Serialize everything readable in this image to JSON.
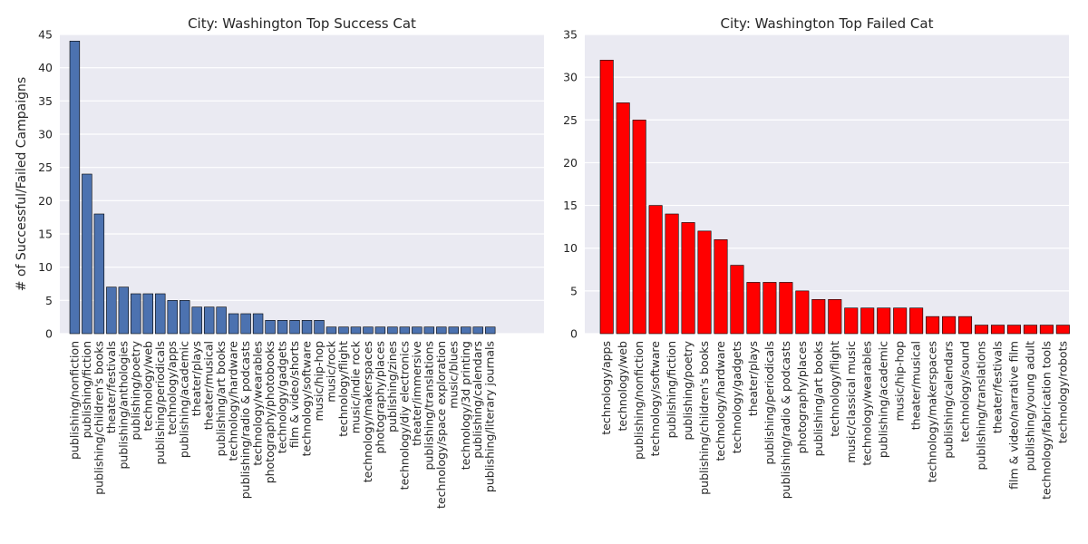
{
  "figure": {
    "ylabel": "# of Successful/Failed Campaigns"
  },
  "chart_data": [
    {
      "type": "bar",
      "title": "City: Washington Top Success Cat",
      "xlabel": "",
      "ylabel": "# of Successful/Failed Campaigns",
      "ylim": [
        0,
        45
      ],
      "yticks": [
        0,
        5,
        10,
        15,
        20,
        25,
        30,
        35,
        40,
        45
      ],
      "grid": true,
      "color": "#4c72b0",
      "categories": [
        "publishing/nonfiction",
        "publishing/fiction",
        "publishing/children's books",
        "theater/festivals",
        "publishing/anthologies",
        "publishing/poetry",
        "technology/web",
        "publishing/periodicals",
        "technology/apps",
        "publishing/academic",
        "theater/plays",
        "theater/musical",
        "publishing/art books",
        "technology/hardware",
        "publishing/radio & podcasts",
        "technology/wearables",
        "photography/photobooks",
        "technology/gadgets",
        "film & video/shorts",
        "technology/software",
        "music/hip-hop",
        "music/rock",
        "technology/flight",
        "music/indie rock",
        "technology/makerspaces",
        "photography/places",
        "publishing/zines",
        "technology/diy electronics",
        "theater/immersive",
        "publishing/translations",
        "technology/space exploration",
        "music/blues",
        "technology/3d printing",
        "publishing/calendars",
        "publishing/literary journals"
      ],
      "values": [
        44,
        24,
        18,
        7,
        7,
        6,
        6,
        6,
        5,
        5,
        4,
        4,
        4,
        3,
        3,
        3,
        2,
        2,
        2,
        2,
        2,
        1,
        1,
        1,
        1,
        1,
        1,
        1,
        1,
        1,
        1,
        1,
        1,
        1,
        1
      ]
    },
    {
      "type": "bar",
      "title": "City: Washington Top Failed Cat",
      "xlabel": "",
      "ylabel": "",
      "ylim": [
        0,
        35
      ],
      "yticks": [
        0,
        5,
        10,
        15,
        20,
        25,
        30,
        35
      ],
      "grid": true,
      "color": "#ff0000",
      "categories": [
        "technology/apps",
        "technology/web",
        "publishing/nonfiction",
        "technology/software",
        "publishing/fiction",
        "publishing/poetry",
        "publishing/children's books",
        "technology/hardware",
        "technology/gadgets",
        "theater/plays",
        "publishing/periodicals",
        "publishing/radio & podcasts",
        "photography/places",
        "publishing/art books",
        "technology/flight",
        "music/classical music",
        "technology/wearables",
        "publishing/academic",
        "music/hip-hop",
        "theater/musical",
        "technology/makerspaces",
        "publishing/calendars",
        "technology/sound",
        "publishing/translations",
        "theater/festivals",
        "film & video/narrative film",
        "publishing/young adult",
        "technology/fabrication tools",
        "technology/robots"
      ],
      "values": [
        32,
        27,
        25,
        15,
        14,
        13,
        12,
        11,
        8,
        6,
        6,
        6,
        5,
        4,
        4,
        3,
        3,
        3,
        3,
        3,
        2,
        2,
        2,
        1,
        1,
        1,
        1,
        1,
        1
      ]
    }
  ]
}
